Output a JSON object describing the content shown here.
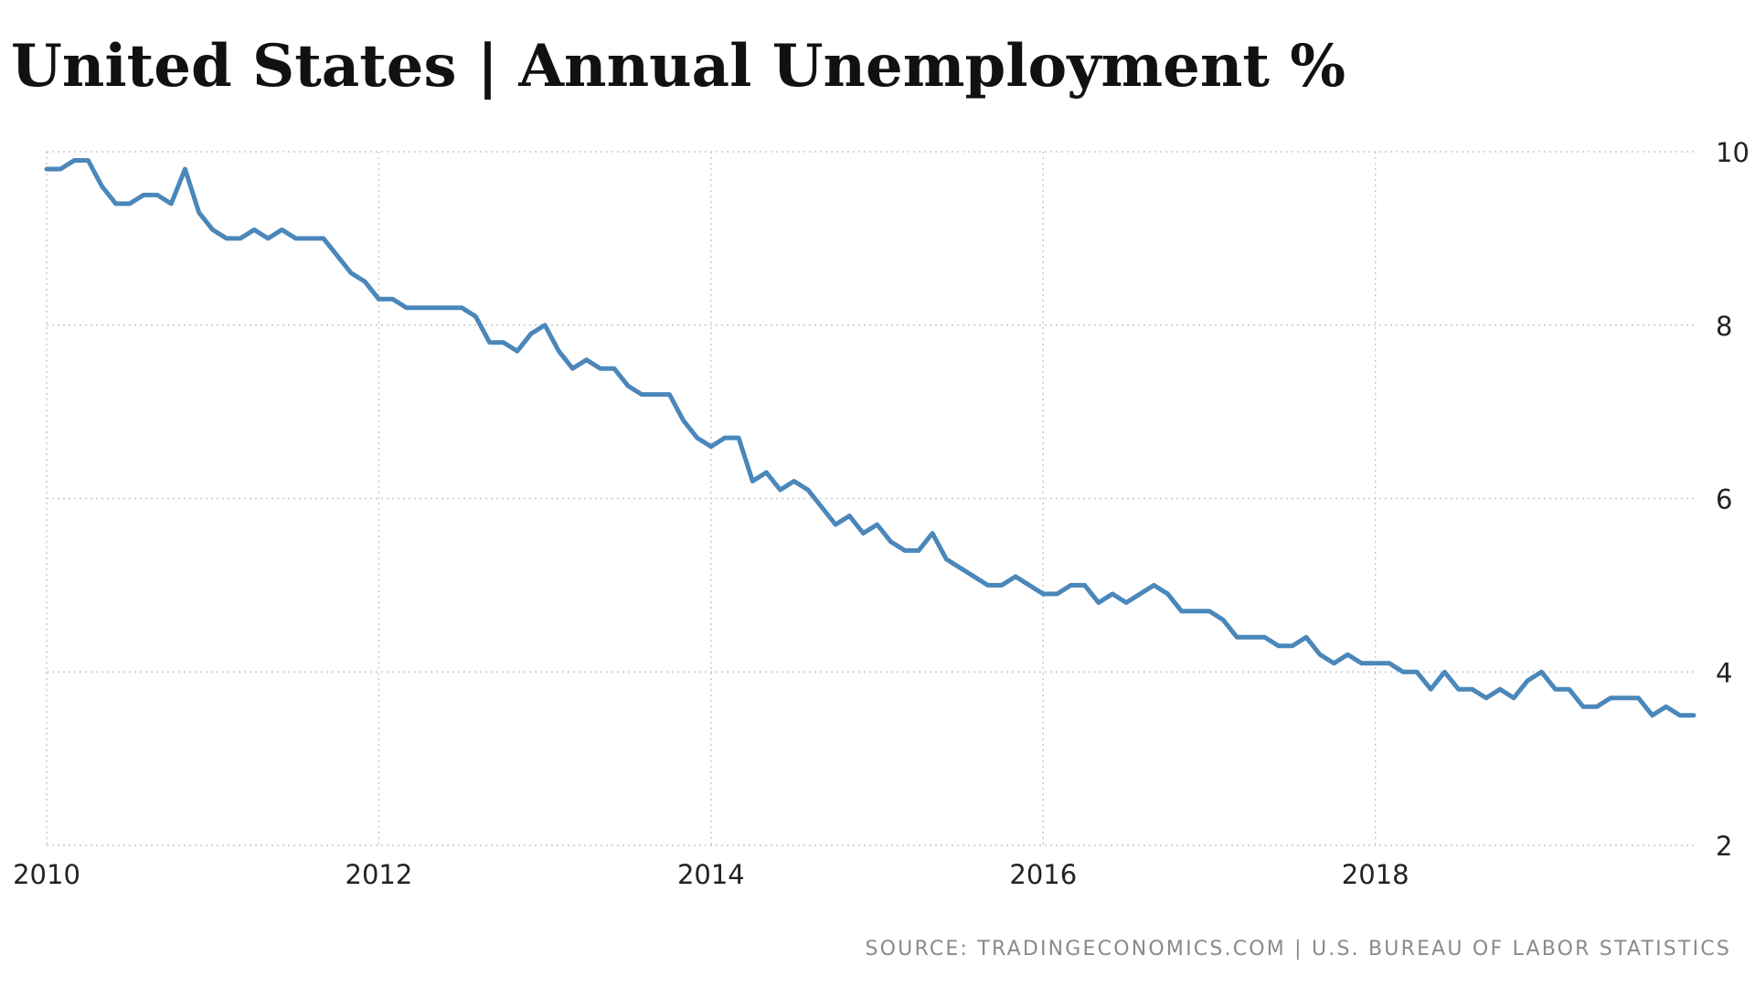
{
  "header": {
    "title": "United States | Annual Unemployment %"
  },
  "footer": {
    "source": "SOURCE: TRADINGECONOMICS.COM | U.S. BUREAU OF LABOR STATISTICS"
  },
  "colors": {
    "line": "#4a87ba",
    "grid": "#c8c8c8",
    "text": "#111111",
    "source_text": "#8a8a8a"
  },
  "chart_data": {
    "type": "line",
    "title": "United States | Annual Unemployment %",
    "xlabel": "",
    "ylabel": "",
    "xlim": [
      "2010-01",
      "2019-12"
    ],
    "ylim": [
      2,
      10
    ],
    "x_ticks": [
      "2010",
      "2012",
      "2014",
      "2016",
      "2018"
    ],
    "y_ticks": [
      "2",
      "4",
      "6",
      "8",
      "10"
    ],
    "y_axis_side": "right",
    "grid": true,
    "legend": "none",
    "series": [
      {
        "name": "",
        "x": [
          "2010-01",
          "2010-02",
          "2010-03",
          "2010-04",
          "2010-05",
          "2010-06",
          "2010-07",
          "2010-08",
          "2010-09",
          "2010-10",
          "2010-11",
          "2010-12",
          "2011-01",
          "2011-02",
          "2011-03",
          "2011-04",
          "2011-05",
          "2011-06",
          "2011-07",
          "2011-08",
          "2011-09",
          "2011-10",
          "2011-11",
          "2011-12",
          "2012-01",
          "2012-02",
          "2012-03",
          "2012-04",
          "2012-05",
          "2012-06",
          "2012-07",
          "2012-08",
          "2012-09",
          "2012-10",
          "2012-11",
          "2012-12",
          "2013-01",
          "2013-02",
          "2013-03",
          "2013-04",
          "2013-05",
          "2013-06",
          "2013-07",
          "2013-08",
          "2013-09",
          "2013-10",
          "2013-11",
          "2013-12",
          "2014-01",
          "2014-02",
          "2014-03",
          "2014-04",
          "2014-05",
          "2014-06",
          "2014-07",
          "2014-08",
          "2014-09",
          "2014-10",
          "2014-11",
          "2014-12",
          "2015-01",
          "2015-02",
          "2015-03",
          "2015-04",
          "2015-05",
          "2015-06",
          "2015-07",
          "2015-08",
          "2015-09",
          "2015-10",
          "2015-11",
          "2015-12",
          "2016-01",
          "2016-02",
          "2016-03",
          "2016-04",
          "2016-05",
          "2016-06",
          "2016-07",
          "2016-08",
          "2016-09",
          "2016-10",
          "2016-11",
          "2016-12",
          "2017-01",
          "2017-02",
          "2017-03",
          "2017-04",
          "2017-05",
          "2017-06",
          "2017-07",
          "2017-08",
          "2017-09",
          "2017-10",
          "2017-11",
          "2017-12",
          "2018-01",
          "2018-02",
          "2018-03",
          "2018-04",
          "2018-05",
          "2018-06",
          "2018-07",
          "2018-08",
          "2018-09",
          "2018-10",
          "2018-11",
          "2018-12",
          "2019-01",
          "2019-02",
          "2019-03",
          "2019-04",
          "2019-05",
          "2019-06",
          "2019-07",
          "2019-08",
          "2019-09",
          "2019-10",
          "2019-11",
          "2019-12"
        ],
        "values": [
          9.8,
          9.8,
          9.9,
          9.9,
          9.6,
          9.4,
          9.4,
          9.5,
          9.5,
          9.4,
          9.8,
          9.3,
          9.1,
          9.0,
          9.0,
          9.1,
          9.0,
          9.1,
          9.0,
          9.0,
          9.0,
          8.8,
          8.6,
          8.5,
          8.3,
          8.3,
          8.2,
          8.2,
          8.2,
          8.2,
          8.2,
          8.1,
          7.8,
          7.8,
          7.7,
          7.9,
          8.0,
          7.7,
          7.5,
          7.6,
          7.5,
          7.5,
          7.3,
          7.2,
          7.2,
          7.2,
          6.9,
          6.7,
          6.6,
          6.7,
          6.7,
          6.2,
          6.3,
          6.1,
          6.2,
          6.1,
          5.9,
          5.7,
          5.8,
          5.6,
          5.7,
          5.5,
          5.4,
          5.4,
          5.6,
          5.3,
          5.2,
          5.1,
          5.0,
          5.0,
          5.1,
          5.0,
          4.9,
          4.9,
          5.0,
          5.0,
          4.8,
          4.9,
          4.8,
          4.9,
          5.0,
          4.9,
          4.7,
          4.7,
          4.7,
          4.6,
          4.4,
          4.4,
          4.4,
          4.3,
          4.3,
          4.4,
          4.2,
          4.1,
          4.2,
          4.1,
          4.1,
          4.1,
          4.0,
          4.0,
          3.8,
          4.0,
          3.8,
          3.8,
          3.7,
          3.8,
          3.7,
          3.9,
          4.0,
          3.8,
          3.8,
          3.6,
          3.6,
          3.7,
          3.7,
          3.7,
          3.5,
          3.6,
          3.5,
          3.5
        ]
      }
    ]
  }
}
